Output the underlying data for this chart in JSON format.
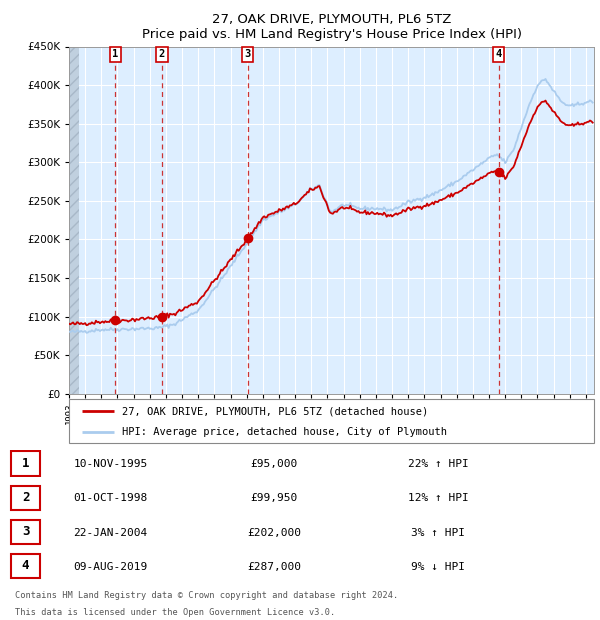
{
  "title": "27, OAK DRIVE, PLYMOUTH, PL6 5TZ",
  "subtitle": "Price paid vs. HM Land Registry's House Price Index (HPI)",
  "legend_line1": "27, OAK DRIVE, PLYMOUTH, PL6 5TZ (detached house)",
  "legend_line2": "HPI: Average price, detached house, City of Plymouth",
  "sales": [
    {
      "label": "1",
      "date_str": "10-NOV-1995",
      "date_num": 1995.87,
      "price": 95000,
      "hpi_pct": "22% ↑ HPI"
    },
    {
      "label": "2",
      "date_str": "01-OCT-1998",
      "date_num": 1998.75,
      "price": 99950,
      "hpi_pct": "12% ↑ HPI"
    },
    {
      "label": "3",
      "date_str": "22-JAN-2004",
      "date_num": 2004.06,
      "price": 202000,
      "hpi_pct": "3% ↑ HPI"
    },
    {
      "label": "4",
      "date_str": "09-AUG-2019",
      "date_num": 2019.6,
      "price": 287000,
      "hpi_pct": "9% ↓ HPI"
    }
  ],
  "footer1": "Contains HM Land Registry data © Crown copyright and database right 2024.",
  "footer2": "This data is licensed under the Open Government Licence v3.0.",
  "ylim": [
    0,
    450000
  ],
  "xlim_start": 1993.0,
  "xlim_end": 2025.5,
  "hpi_color": "#aaccee",
  "price_color": "#cc0000",
  "marker_color": "#cc0000",
  "dashed_color": "#cc3333",
  "bg_plot": "#ddeeff",
  "grid_color": "#ffffff",
  "label_box_color": "#cc0000"
}
